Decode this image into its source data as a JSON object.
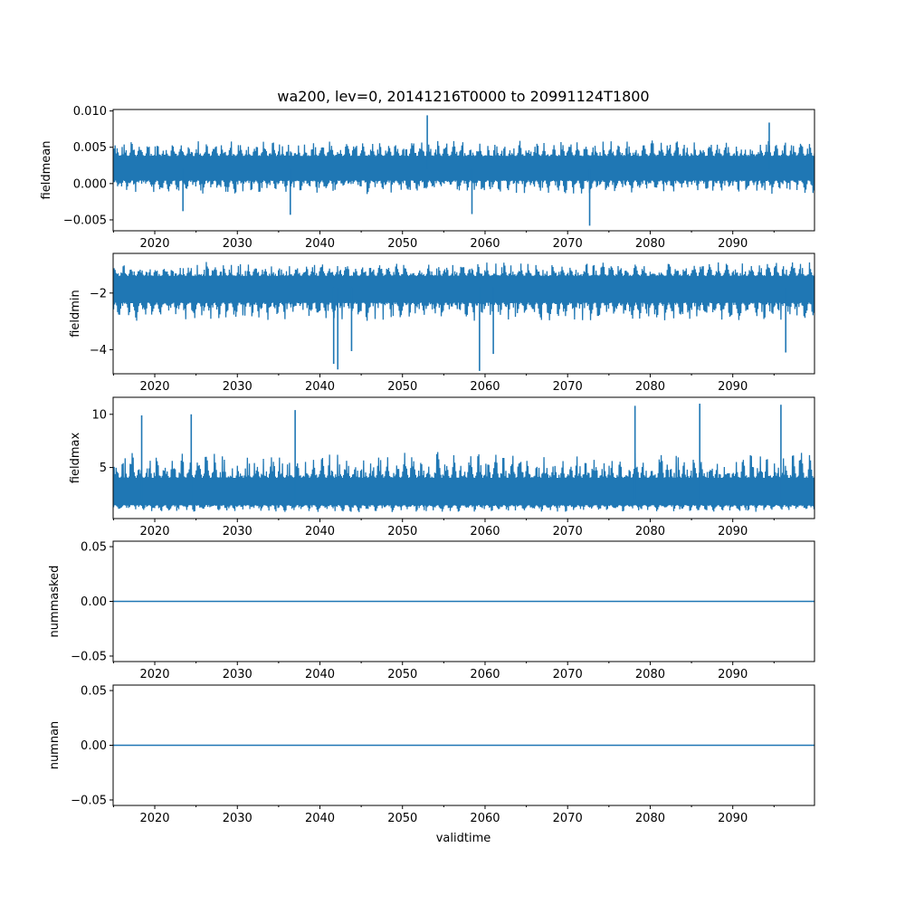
{
  "title": "wa200, lev=0, 20141216T0000 to 20991124T1800",
  "xlabel": "validtime",
  "chart_data": {
    "type": "line",
    "x_range": [
      "2014-12-16T00:00",
      "2099-11-24T18:00"
    ],
    "x_ticks": [
      "2020",
      "2030",
      "2040",
      "2050",
      "2060",
      "2070",
      "2080",
      "2090"
    ],
    "line_color": "#1f77b4",
    "panels": [
      {
        "name": "fieldmean",
        "ylabel": "fieldmean",
        "ylim": [
          -0.0065,
          0.0102
        ],
        "yticks": [
          -0.005,
          0.0,
          0.005,
          0.01
        ],
        "ytick_labels": [
          "−0.005",
          "0.000",
          "0.005",
          "0.010"
        ],
        "series": {
          "center": 0.002,
          "typical_low": -0.0015,
          "typical_high": 0.006,
          "spikes": [
            {
              "x": "2053-01",
              "y": 0.0094
            },
            {
              "x": "2094-06",
              "y": 0.0084
            },
            {
              "x": "2072-09",
              "y": -0.0058
            },
            {
              "x": "2058-06",
              "y": -0.0042
            },
            {
              "x": "2036-06",
              "y": -0.0043
            },
            {
              "x": "2023-06",
              "y": -0.0038
            }
          ]
        }
      },
      {
        "name": "fieldmin",
        "ylabel": "fieldmin",
        "ylim": [
          -4.85,
          -0.6
        ],
        "yticks": [
          -4,
          -2
        ],
        "ytick_labels": [
          "−4",
          "−2"
        ],
        "series": {
          "center": -1.8,
          "typical_low": -3.0,
          "typical_high": -0.9,
          "spikes": [
            {
              "x": "2042-03",
              "y": -4.7
            },
            {
              "x": "2041-09",
              "y": -4.5
            },
            {
              "x": "2059-05",
              "y": -4.75
            },
            {
              "x": "2061-01",
              "y": -4.15
            },
            {
              "x": "2043-11",
              "y": -4.05
            },
            {
              "x": "2096-06",
              "y": -4.1
            }
          ]
        }
      },
      {
        "name": "fieldmax",
        "ylabel": "fieldmax",
        "ylim": [
          0.2,
          11.6
        ],
        "yticks": [
          5,
          10
        ],
        "ytick_labels": [
          "5",
          "10"
        ],
        "series": {
          "center": 2.0,
          "typical_low": 0.8,
          "typical_high": 6.5,
          "spikes": [
            {
              "x": "2086-01",
              "y": 11.0
            },
            {
              "x": "2095-11",
              "y": 10.9
            },
            {
              "x": "2078-03",
              "y": 10.8
            },
            {
              "x": "2037-01",
              "y": 10.4
            },
            {
              "x": "2018-06",
              "y": 9.9
            },
            {
              "x": "2024-06",
              "y": 10.0
            }
          ]
        }
      },
      {
        "name": "nummasked",
        "ylabel": "nummasked",
        "ylim": [
          -0.055,
          0.055
        ],
        "yticks": [
          -0.05,
          0.0,
          0.05
        ],
        "ytick_labels": [
          "−0.05",
          "0.00",
          "0.05"
        ],
        "constant_value": 0.0
      },
      {
        "name": "numnan",
        "ylabel": "numnan",
        "ylim": [
          -0.055,
          0.055
        ],
        "yticks": [
          -0.05,
          0.0,
          0.05
        ],
        "ytick_labels": [
          "−0.05",
          "0.00",
          "0.05"
        ],
        "constant_value": 0.0
      }
    ]
  }
}
